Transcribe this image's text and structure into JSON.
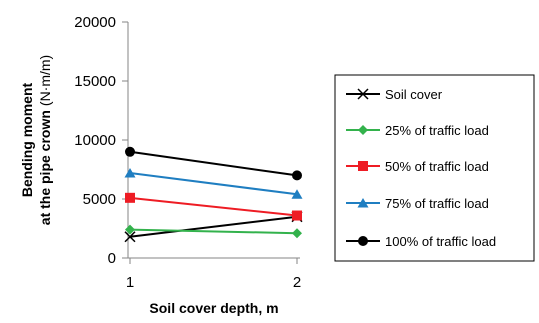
{
  "chart_data": {
    "type": "line",
    "x": [
      1,
      2
    ],
    "xlabel": "Soil cover depth, m",
    "ylabel_line1": "Bending moment",
    "ylabel_line2": "at the pipe crown",
    "ylabel_unit": "(N·m/m)",
    "xlim": [
      1,
      2
    ],
    "ylim": [
      0,
      20000
    ],
    "x_ticks": [
      "1",
      "2"
    ],
    "y_ticks": [
      "0",
      "5000",
      "10000",
      "15000",
      "20000"
    ],
    "grid": false,
    "legend_position": "right",
    "series": [
      {
        "name": "Soil cover",
        "values": [
          1800,
          3500
        ],
        "color": "#000000",
        "marker": "x"
      },
      {
        "name": "25% of traffic load",
        "values": [
          2400,
          2100
        ],
        "color": "#33b24c",
        "marker": "diamond"
      },
      {
        "name": "50% of traffic load",
        "values": [
          5100,
          3600
        ],
        "color": "#ee1c24",
        "marker": "square"
      },
      {
        "name": "75% of traffic load",
        "values": [
          7200,
          5400
        ],
        "color": "#1f7ec1",
        "marker": "triangle"
      },
      {
        "name": "100% of traffic load",
        "values": [
          9000,
          7000
        ],
        "color": "#000000",
        "marker": "circle"
      }
    ]
  }
}
